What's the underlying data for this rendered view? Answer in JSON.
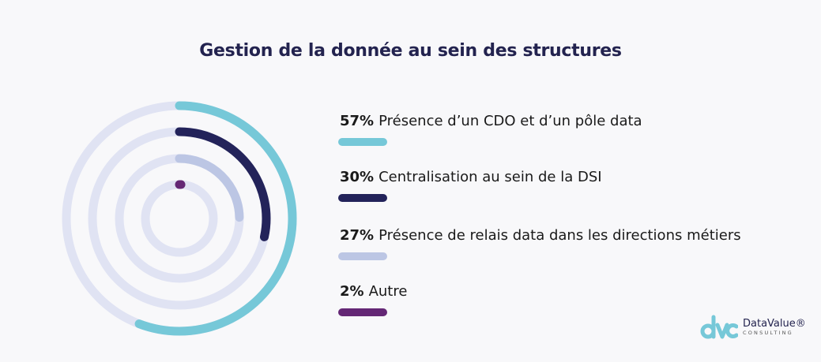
{
  "chart_data": {
    "type": "radial-bar",
    "title": "Gestion de la donnée au sein des structures",
    "max": 100,
    "track_color": "#e0e3f3",
    "series": [
      {
        "name": "Présence d’un CDO et d’un pôle data",
        "value": 57,
        "label": "57%",
        "color": "#76c8d8"
      },
      {
        "name": "Centralisation au sein de la DSI",
        "value": 30,
        "label": "30%",
        "color": "#23235a"
      },
      {
        "name": "Présence de relais data dans les directions métiers",
        "value": 27,
        "label": "27%",
        "color": "#bcc6e4"
      },
      {
        "name": "Autre",
        "value": 2,
        "label": "2%",
        "color": "#642775"
      }
    ],
    "legend_position": "right"
  },
  "logo": {
    "name": "DataValue®",
    "sub": "CONSULTING",
    "mark": "dvc",
    "color": "#76c8d8"
  }
}
